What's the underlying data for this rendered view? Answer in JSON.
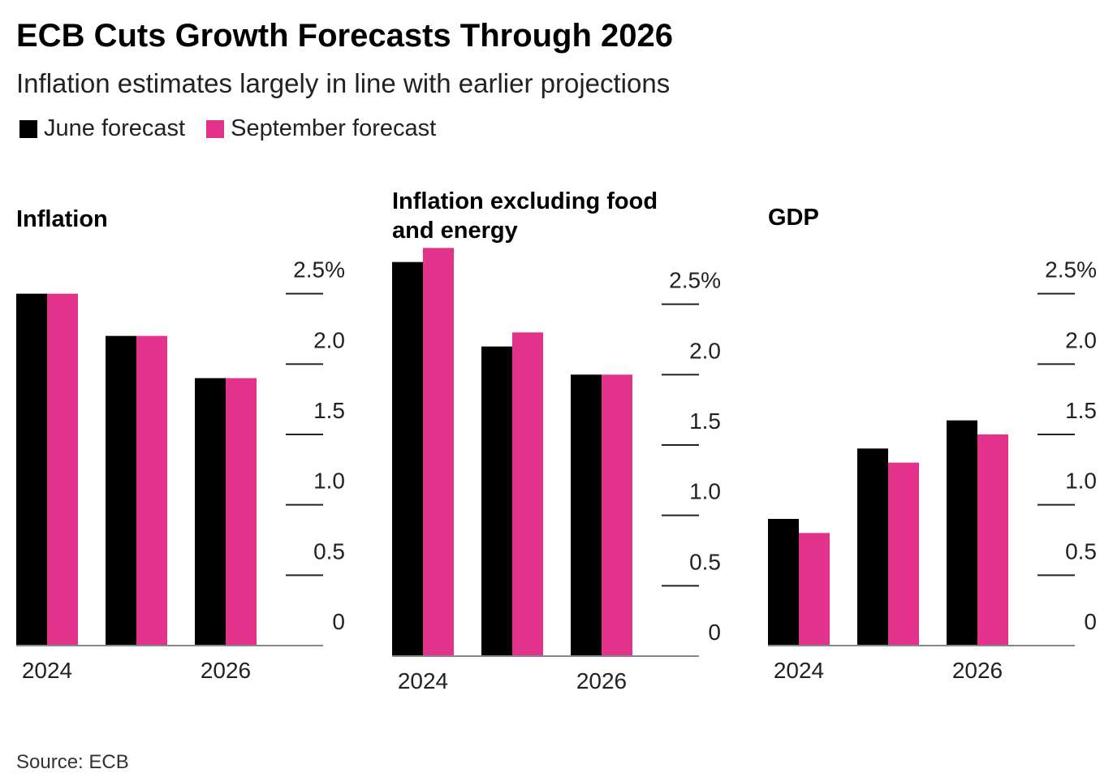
{
  "title": "ECB Cuts Growth Forecasts Through 2026",
  "subtitle": "Inflation estimates largely in line with earlier projections",
  "source": "Source: ECB",
  "chart_data": [
    {
      "type": "bar",
      "title": "Inflation",
      "categories": [
        "2024",
        null,
        "2026"
      ],
      "series": [
        {
          "name": "June forecast",
          "color": "#000000",
          "values": [
            2.5,
            2.2,
            1.9
          ]
        },
        {
          "name": "September forecast",
          "color": "#e3328b",
          "values": [
            2.5,
            2.2,
            1.9
          ]
        }
      ],
      "ylim": [
        0,
        3
      ],
      "yticks": [
        0,
        0.5,
        {
          "value": 1,
          "label": "1.0"
        },
        1.5,
        {
          "value": 2,
          "label": "2.0"
        },
        {
          "value": 2.5,
          "label": "2.5%"
        }
      ]
    },
    {
      "type": "bar",
      "title": "Inflation excluding food and energy",
      "categories": [
        "2024",
        null,
        "2026"
      ],
      "series": [
        {
          "name": "June forecast",
          "color": "#000000",
          "values": [
            2.8,
            2.2,
            2.0
          ]
        },
        {
          "name": "September forecast",
          "color": "#e3328b",
          "values": [
            2.9,
            2.3,
            2.0
          ]
        }
      ],
      "ylim": [
        0,
        3
      ],
      "yticks": [
        0,
        0.5,
        {
          "value": 1,
          "label": "1.0"
        },
        1.5,
        {
          "value": 2,
          "label": "2.0"
        },
        {
          "value": 2.5,
          "label": "2.5%"
        }
      ]
    },
    {
      "type": "bar",
      "title": "GDP",
      "categories": [
        "2024",
        null,
        "2026"
      ],
      "series": [
        {
          "name": "June forecast",
          "color": "#000000",
          "values": [
            0.9,
            1.4,
            1.6
          ]
        },
        {
          "name": "September forecast",
          "color": "#e3328b",
          "values": [
            0.8,
            1.3,
            1.5
          ]
        }
      ],
      "ylim": [
        0,
        3
      ],
      "yticks": [
        0,
        0.5,
        {
          "value": 1,
          "label": "1.0"
        },
        1.5,
        {
          "value": 2,
          "label": "2.0"
        },
        {
          "value": 2.5,
          "label": "2.5%"
        }
      ]
    }
  ]
}
